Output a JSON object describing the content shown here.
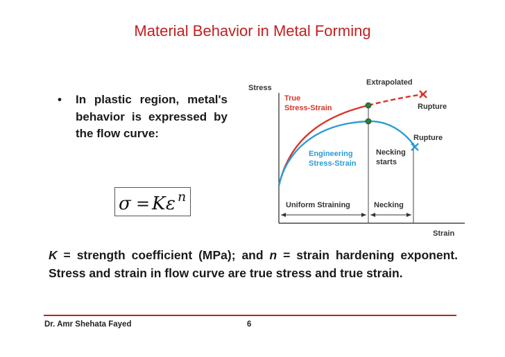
{
  "slide": {
    "title": "Material Behavior in Metal Forming",
    "bullet": {
      "symbol": "•",
      "text": "In plastic region, metal's behavior is expressed by the flow curve:"
    },
    "formula": {
      "sigma": "σ",
      "equals": "=",
      "K": "K",
      "epsilon": "ε",
      "n": "n"
    },
    "explanation": {
      "k_symbol": "K",
      "k_text": " = strength coefficient (MPa); and ",
      "n_symbol": "n",
      "n_text": " = strain hardening exponent. Stress and strain in flow curve are true stress and true strain."
    },
    "footer": {
      "author": "Dr. Amr Shehata Fayed",
      "page": "6"
    }
  },
  "diagram": {
    "axis_y_label": "Stress",
    "axis_x_label": "Strain",
    "true_label_line1": "True",
    "true_label_line2": "Stress-Strain",
    "eng_label_line1": "Engineering",
    "eng_label_line2": "Stress-Strain",
    "extrapolated_label": "Extrapolated",
    "rupture_true_label": "Rupture",
    "rupture_eng_label": "Rupture",
    "necking_starts_line1": "Necking",
    "necking_starts_line2": "starts",
    "region_uniform": "Uniform Straining",
    "region_necking": "Necking",
    "colors": {
      "true_curve": "#d9342b",
      "engineering_curve": "#2b9bd6",
      "marker": "#2e7d3a",
      "title_red": "#c0201f"
    }
  }
}
